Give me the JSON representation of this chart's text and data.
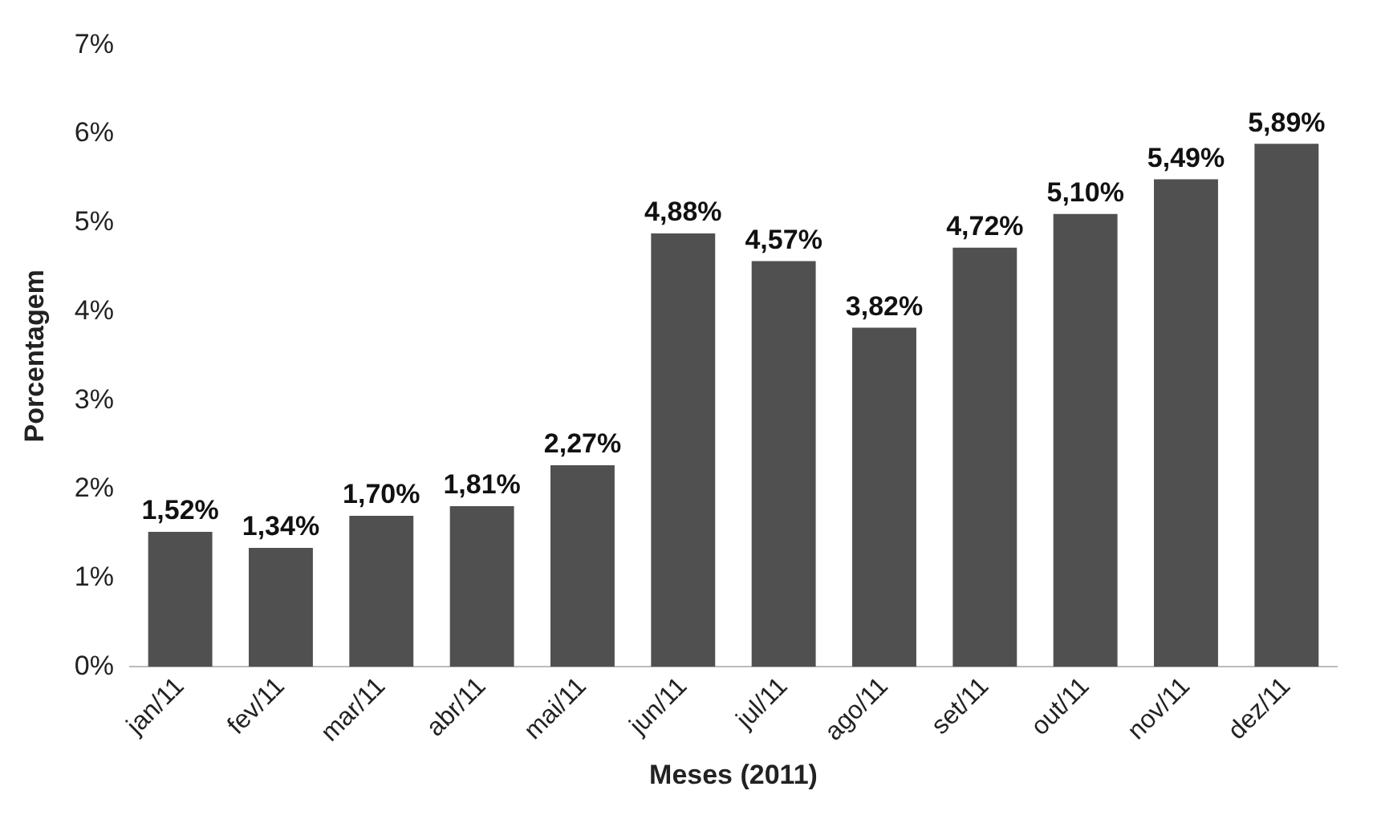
{
  "chart_data": {
    "type": "bar",
    "xlabel": "Meses (2011)",
    "ylabel": "Porcentagem",
    "categories": [
      "jan/11",
      "fev/11",
      "mar/11",
      "abr/11",
      "mai/11",
      "jun/11",
      "jul/11",
      "ago/11",
      "set/11",
      "out/11",
      "nov/11",
      "dez/11"
    ],
    "values": [
      1.52,
      1.34,
      1.7,
      1.81,
      2.27,
      4.88,
      4.57,
      3.82,
      4.72,
      5.1,
      5.49,
      5.89
    ],
    "value_labels": [
      "1,52%",
      "1,34%",
      "1,70%",
      "1,81%",
      "2,27%",
      "4,88%",
      "4,57%",
      "3,82%",
      "4,72%",
      "5,10%",
      "5,49%",
      "5,89%"
    ],
    "color": "#505050",
    "ylim": [
      0,
      7
    ],
    "yticks": [
      {
        "value": 0,
        "label": "0%"
      },
      {
        "value": 1,
        "label": "1%"
      },
      {
        "value": 2,
        "label": "2%"
      },
      {
        "value": 3,
        "label": "3%"
      },
      {
        "value": 4,
        "label": "4%"
      },
      {
        "value": 5,
        "label": "5%"
      },
      {
        "value": 6,
        "label": "6%"
      },
      {
        "value": 7,
        "label": "7%"
      }
    ],
    "grid": false,
    "legend": false
  }
}
